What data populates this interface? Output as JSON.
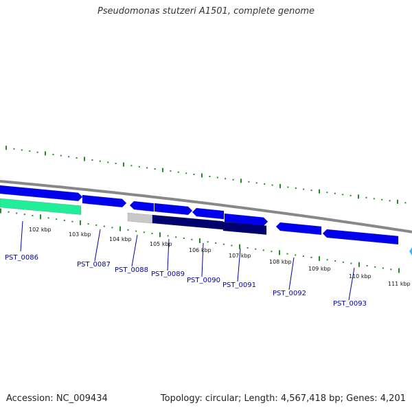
{
  "title": "Pseudomonas stutzeri A1501, complete genome",
  "footer": {
    "accession": "Accession: NC_009434",
    "topology": "Topology: circular; Length: 4,567,418 bp; Genes: 4,201"
  },
  "colors": {
    "backbone": "#888888",
    "gc_ticks": "#228b22",
    "gene_blue": "#0000ee",
    "gene_navy": "#00006e",
    "gene_grey": "#c8c8c8",
    "gene_teal": "#22ee99",
    "gene_cyan": "#33bbff",
    "label_color": "#0000aa"
  },
  "kbp_labels": [
    "102 kbp",
    "103 kbp",
    "104 kbp",
    "105 kbp",
    "106 kbp",
    "107 kbp",
    "108 kbp",
    "109 kbp",
    "110 kbp",
    "111 kbp"
  ],
  "gene_labels": [
    "PST_0086",
    "PST_0087",
    "PST_0088",
    "PST_0089",
    "PST_0090",
    "PST_0091",
    "PST_0092",
    "PST_0093"
  ]
}
